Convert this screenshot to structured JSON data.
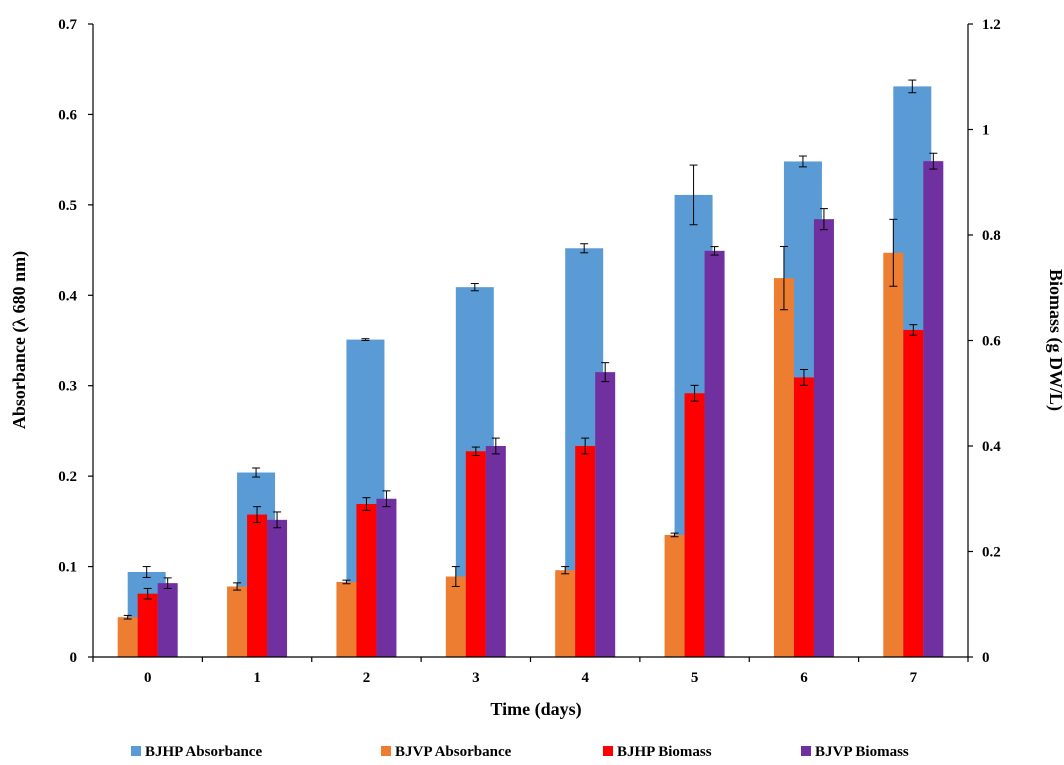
{
  "chart_data": {
    "type": "bar",
    "categories": [
      "0",
      "1",
      "2",
      "3",
      "4",
      "5",
      "6",
      "7"
    ],
    "xlabel": "Time (days)",
    "ylabel_left": "Absorbance (λ 680 nm)",
    "ylabel_right": "Biomass (g DW/L)",
    "ylim_left": [
      0,
      0.7
    ],
    "ylim_right": [
      0,
      1.2
    ],
    "yticks_left": [
      "0",
      "0.1",
      "0.2",
      "0.3",
      "0.4",
      "0.5",
      "0.6",
      "0.7"
    ],
    "yticks_right": [
      "0",
      "0.2",
      "0.4",
      "0.6",
      "0.8",
      "1",
      "1.2"
    ],
    "grid": false,
    "legend_position": "bottom",
    "series": [
      {
        "name": "BJHP Absorbance",
        "axis": "left",
        "color": "#5B9BD5",
        "values": [
          0.094,
          0.204,
          0.351,
          0.409,
          0.452,
          0.511,
          0.548,
          0.631
        ],
        "errors": [
          0.006,
          0.005,
          0.001,
          0.004,
          0.005,
          0.033,
          0.006,
          0.007
        ]
      },
      {
        "name": "BJVP Absorbance",
        "axis": "left",
        "color": "#ED7D31",
        "values": [
          0.044,
          0.078,
          0.083,
          0.089,
          0.096,
          0.135,
          0.419,
          0.447
        ],
        "errors": [
          0.002,
          0.004,
          0.002,
          0.011,
          0.004,
          0.002,
          0.035,
          0.037
        ]
      },
      {
        "name": "BJHP Biomass",
        "axis": "right",
        "color": "#FF0000",
        "values": [
          0.12,
          0.27,
          0.29,
          0.39,
          0.4,
          0.5,
          0.53,
          0.62
        ],
        "errors": [
          0.01,
          0.015,
          0.012,
          0.008,
          0.015,
          0.015,
          0.015,
          0.01
        ]
      },
      {
        "name": "BJVP Biomass",
        "axis": "right",
        "color": "#7030A0",
        "values": [
          0.14,
          0.26,
          0.3,
          0.4,
          0.54,
          0.77,
          0.83,
          0.94
        ],
        "errors": [
          0.01,
          0.015,
          0.015,
          0.015,
          0.018,
          0.008,
          0.02,
          0.015
        ]
      }
    ]
  }
}
